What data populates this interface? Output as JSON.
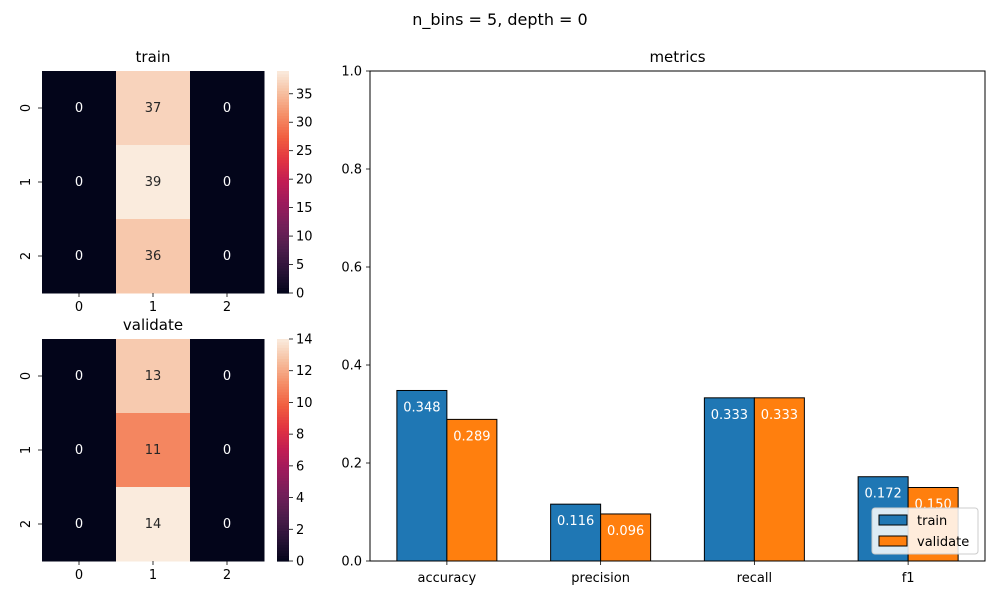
{
  "figure": {
    "suptitle": "n_bins = 5, depth = 0"
  },
  "chart_data": [
    {
      "type": "heatmap",
      "title": "train",
      "x_ticks": [
        "0",
        "1",
        "2"
      ],
      "y_ticks": [
        "0",
        "1",
        "2"
      ],
      "values": [
        [
          0,
          37,
          0
        ],
        [
          0,
          39,
          0
        ],
        [
          0,
          36,
          0
        ]
      ],
      "colorbar": {
        "range": [
          0,
          39
        ],
        "ticks": [
          0,
          5,
          10,
          15,
          20,
          25,
          30,
          35
        ]
      },
      "colormap": "rocket"
    },
    {
      "type": "heatmap",
      "title": "validate",
      "x_ticks": [
        "0",
        "1",
        "2"
      ],
      "y_ticks": [
        "0",
        "1",
        "2"
      ],
      "values": [
        [
          0,
          13,
          0
        ],
        [
          0,
          11,
          0
        ],
        [
          0,
          14,
          0
        ]
      ],
      "colorbar": {
        "range": [
          0,
          14
        ],
        "ticks": [
          0,
          2,
          4,
          6,
          8,
          10,
          12,
          14
        ]
      },
      "colormap": "rocket"
    },
    {
      "type": "bar",
      "title": "metrics",
      "categories": [
        "accuracy",
        "precision",
        "recall",
        "f1"
      ],
      "series": [
        {
          "name": "train",
          "values": [
            0.348,
            0.116,
            0.333,
            0.172
          ],
          "labels": [
            "0.348",
            "0.116",
            "0.333",
            "0.172"
          ],
          "color": "#1f77b4"
        },
        {
          "name": "validate",
          "values": [
            0.289,
            0.096,
            0.333,
            0.15
          ],
          "labels": [
            "0.289",
            "0.096",
            "0.333",
            "0.150"
          ],
          "color": "#ff7f0e"
        }
      ],
      "ylim": [
        0,
        1.0
      ],
      "y_ticks": [
        0.0,
        0.2,
        0.4,
        0.6,
        0.8,
        1.0
      ],
      "y_tick_labels": [
        "0.0",
        "0.2",
        "0.4",
        "0.6",
        "0.8",
        "1.0"
      ],
      "grid": false,
      "legend": "lower-right"
    }
  ]
}
